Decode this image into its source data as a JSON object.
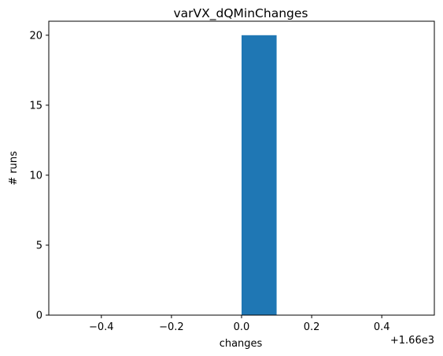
{
  "chart_data": {
    "type": "bar",
    "title": "varVX_dQMinChanges",
    "xlabel": "changes",
    "ylabel": "# runs",
    "x_offset_label": "+1.66e3",
    "xlim": [
      -0.55,
      0.55
    ],
    "ylim": [
      0,
      21
    ],
    "x_ticks": [
      -0.4,
      -0.2,
      0.0,
      0.2,
      0.4
    ],
    "x_tick_labels": [
      "−0.4",
      "−0.2",
      "0.0",
      "0.2",
      "0.4"
    ],
    "y_ticks": [
      0,
      5,
      10,
      15,
      20
    ],
    "y_tick_labels": [
      "0",
      "5",
      "10",
      "15",
      "20"
    ],
    "bins": [
      {
        "x0": -0.5,
        "x1": -0.4,
        "count": 0
      },
      {
        "x0": -0.4,
        "x1": -0.3,
        "count": 0
      },
      {
        "x0": -0.3,
        "x1": -0.2,
        "count": 0
      },
      {
        "x0": -0.2,
        "x1": -0.1,
        "count": 0
      },
      {
        "x0": -0.1,
        "x1": 0.0,
        "count": 0
      },
      {
        "x0": 0.0,
        "x1": 0.1,
        "count": 20
      },
      {
        "x0": 0.1,
        "x1": 0.2,
        "count": 0
      },
      {
        "x0": 0.2,
        "x1": 0.3,
        "count": 0
      },
      {
        "x0": 0.3,
        "x1": 0.4,
        "count": 0
      },
      {
        "x0": 0.4,
        "x1": 0.5,
        "count": 0
      }
    ],
    "bar_color": "#1f77b4",
    "grid": false,
    "legend": "none"
  }
}
